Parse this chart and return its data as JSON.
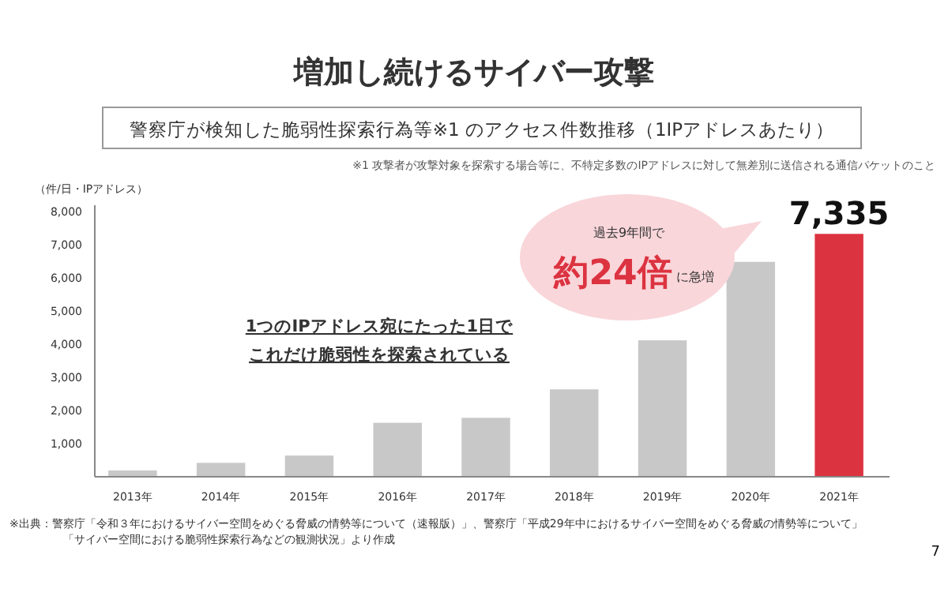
{
  "chart_data": {
    "type": "bar",
    "title": "増加し続けるサイバー攻撃",
    "subtitle": "警察庁が検知した脆弱性探索行為等※1 のアクセス件数推移（1IPアドレスあたり）",
    "ylabel": "（件/日・IPアドレス）",
    "categories": [
      "2013年",
      "2014年",
      "2015年",
      "2016年",
      "2017年",
      "2018年",
      "2019年",
      "2020年",
      "2021年"
    ],
    "values": [
      190,
      420,
      640,
      1630,
      1780,
      2640,
      4120,
      6490,
      7335
    ],
    "colors": [
      "#c8c8c8",
      "#c8c8c8",
      "#c8c8c8",
      "#c8c8c8",
      "#c8c8c8",
      "#c8c8c8",
      "#c8c8c8",
      "#c8c8c8",
      "#dc3340"
    ],
    "value_labels": [
      null,
      null,
      null,
      null,
      null,
      null,
      null,
      null,
      "7,335"
    ],
    "ylim": [
      0,
      8200
    ],
    "yticks": [
      {
        "value": 1000,
        "label": "1,000"
      },
      {
        "value": 2000,
        "label": "2,000"
      },
      {
        "value": 3000,
        "label": "3,000"
      },
      {
        "value": 4000,
        "label": "4,000"
      },
      {
        "value": 5000,
        "label": "5,000"
      },
      {
        "value": 6000,
        "label": "6,000"
      },
      {
        "value": 7000,
        "label": "7,000"
      },
      {
        "value": 8000,
        "label": "8,000"
      }
    ],
    "grid": false,
    "annotations": [
      "※1 攻撃者が攻撃対象を探索する場合等に、不特定多数のIPアドレスに対して無差別に送信される通信パケットのこと",
      "過去9年間で",
      "約24倍",
      "に急増",
      "1つのIPアドレス宛にたった1日で",
      "これだけ脆弱性を探索されている",
      "※出典：警察庁「令和３年におけるサイバー空間をめぐる脅威の情勢等について（速報版）」、警察庁「平成29年中におけるサイバー空間をめぐる脅威の情勢等について」",
      "「サイバー空間における脆弱性探索行為などの観測状況」より作成",
      "7"
    ]
  }
}
